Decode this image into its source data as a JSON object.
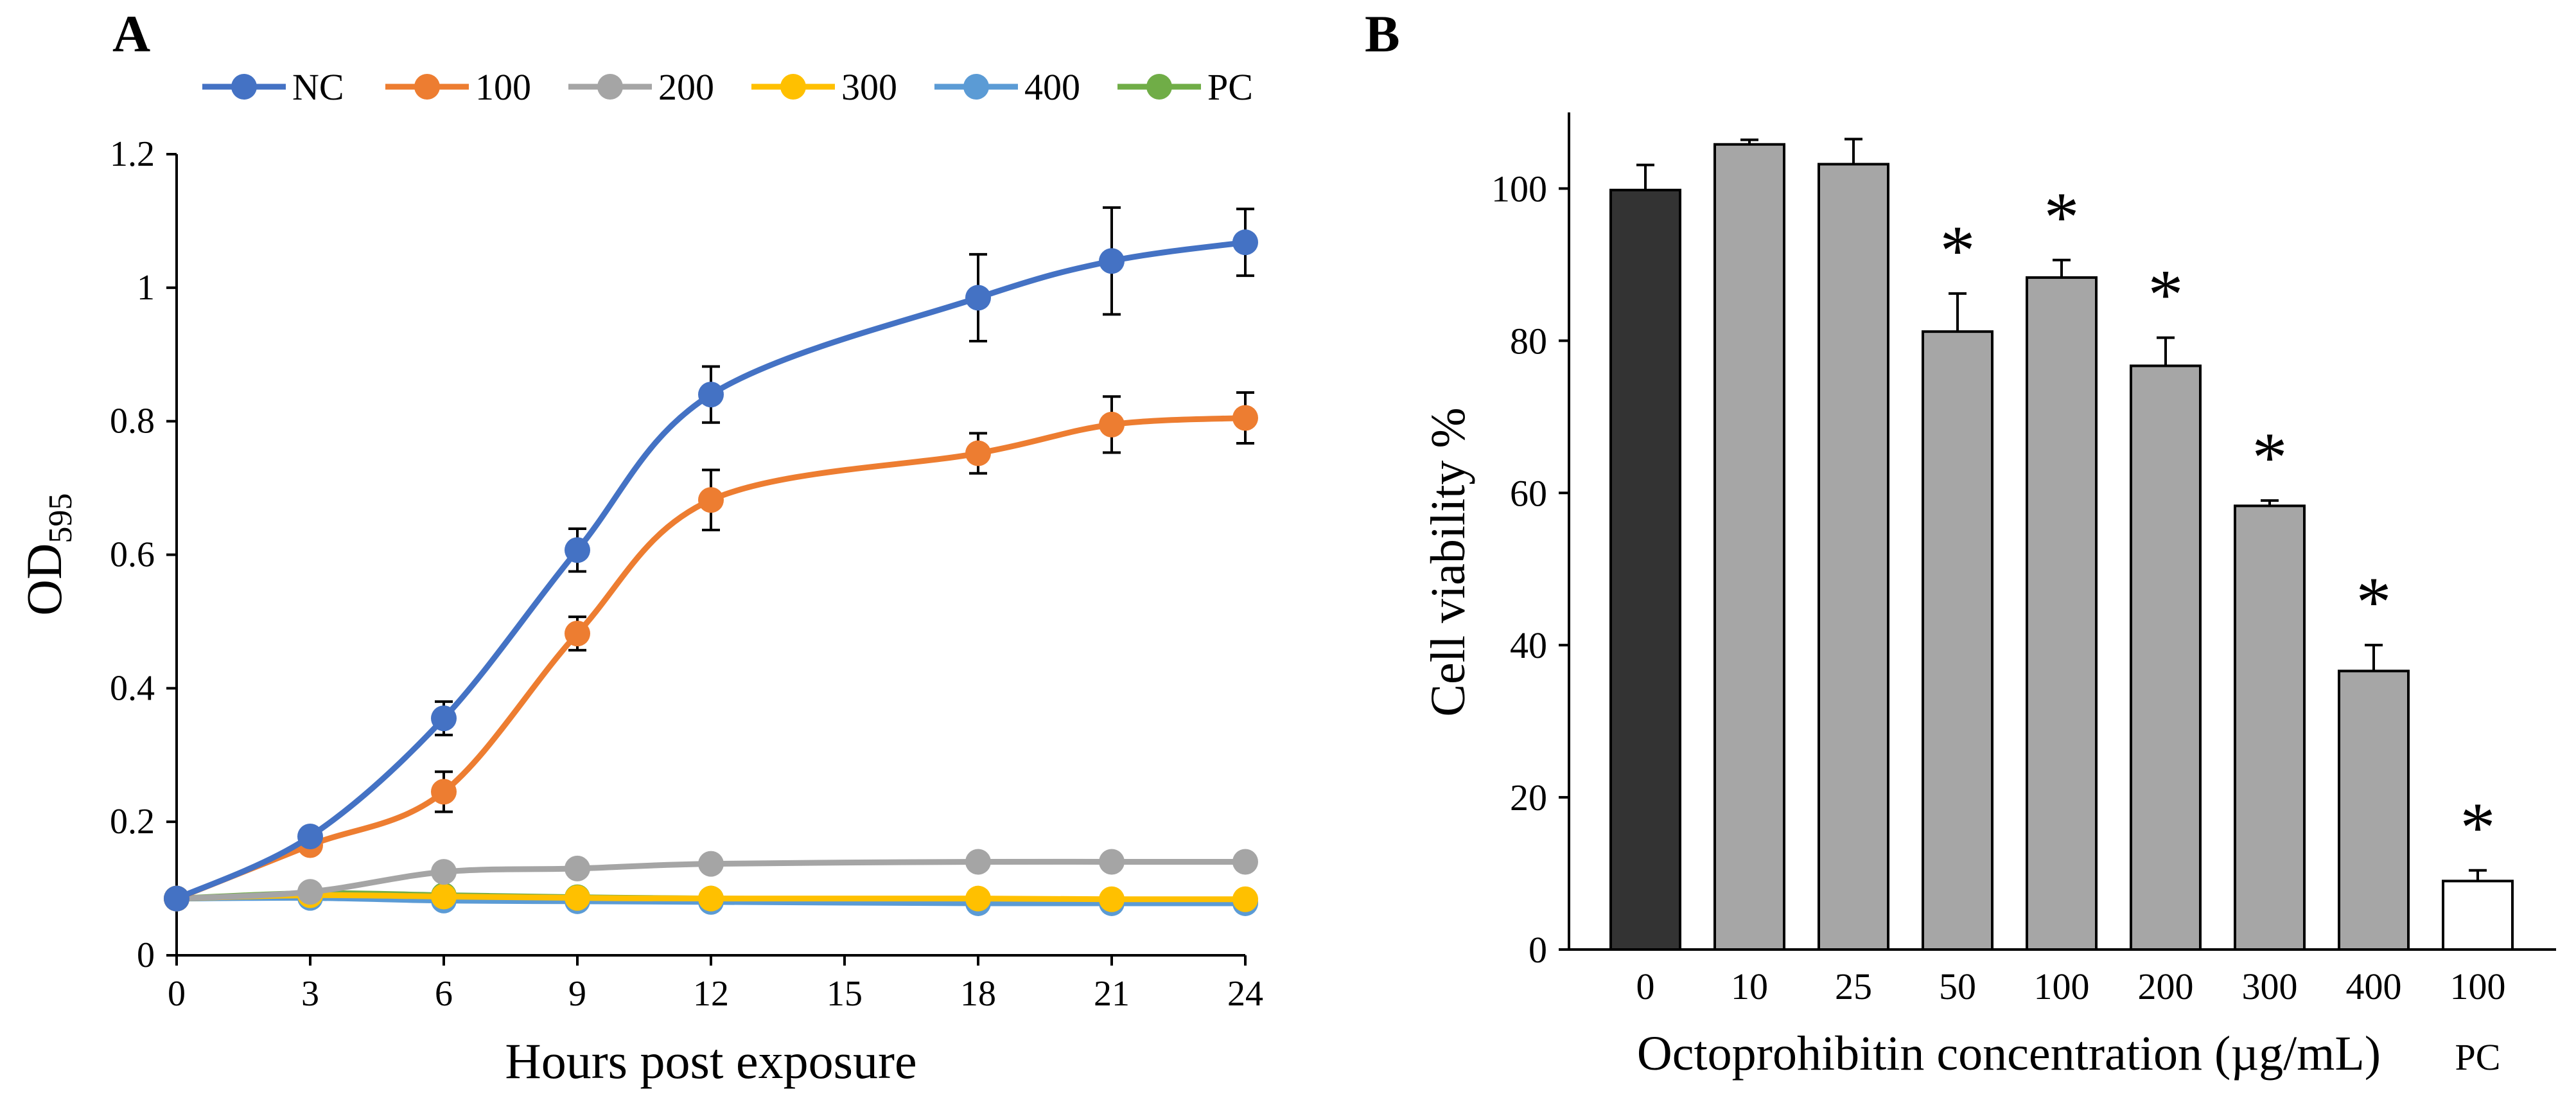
{
  "chart_data": [
    {
      "panel": "A",
      "type": "line",
      "xlabel": "Hours post exposure",
      "ylabel": "OD",
      "ylabel_sub": "595",
      "xlim": [
        0,
        24
      ],
      "ylim": [
        0,
        1.2
      ],
      "xticks": [
        "0",
        "3",
        "6",
        "9",
        "12",
        "15",
        "18",
        "21",
        "24"
      ],
      "yticks": [
        "0",
        "0.2",
        "0.4",
        "0.6",
        "0.8",
        "1",
        "1.2"
      ],
      "x": [
        0,
        3,
        6,
        9,
        12,
        18,
        21,
        24
      ],
      "legend_position": "top",
      "series": [
        {
          "name": "NC",
          "color": "#4472C4",
          "values": [
            0.085,
            0.178,
            0.355,
            0.607,
            0.84,
            0.985,
            1.04,
            1.068
          ],
          "errors": [
            0,
            0.008,
            0.025,
            0.032,
            0.042,
            0.065,
            0.08,
            0.05
          ]
        },
        {
          "name": "100",
          "color": "#ED7D31",
          "values": [
            0.085,
            0.165,
            0.245,
            0.482,
            0.682,
            0.752,
            0.795,
            0.805
          ],
          "errors": [
            0,
            0.008,
            0.03,
            0.025,
            0.045,
            0.03,
            0.042,
            0.038
          ]
        },
        {
          "name": "200",
          "color": "#A5A5A5",
          "values": [
            0.085,
            0.095,
            0.125,
            0.13,
            0.137,
            0.14,
            0.14,
            0.14
          ],
          "errors": [
            0,
            0.004,
            0.005,
            0.005,
            0.005,
            0.005,
            0.005,
            0.005
          ]
        },
        {
          "name": "300",
          "color": "#FFC000",
          "values": [
            0.085,
            0.09,
            0.088,
            0.086,
            0.085,
            0.085,
            0.084,
            0.084
          ],
          "errors": [
            0,
            0,
            0,
            0,
            0,
            0,
            0,
            0
          ]
        },
        {
          "name": "400",
          "color": "#5B9BD5",
          "values": [
            0.085,
            0.086,
            0.082,
            0.081,
            0.08,
            0.078,
            0.078,
            0.078
          ],
          "errors": [
            0,
            0,
            0,
            0,
            0,
            0,
            0,
            0
          ]
        },
        {
          "name": "PC",
          "color": "#70AD47",
          "values": [
            0.085,
            0.093,
            0.09,
            0.087,
            0.085,
            0.083,
            0.081,
            0.079
          ],
          "errors": [
            0,
            0,
            0,
            0,
            0,
            0,
            0,
            0
          ]
        }
      ]
    },
    {
      "panel": "B",
      "type": "bar",
      "xlabel": "Octoprohibitin concentration (µg/mL)",
      "ylabel": "Cell viability %",
      "ylim": [
        0,
        110
      ],
      "yticks": [
        "0",
        "20",
        "40",
        "60",
        "80",
        "100"
      ],
      "categories": [
        "0",
        "10",
        "25",
        "50",
        "100",
        "200",
        "300",
        "400",
        "100"
      ],
      "category_sublabels": [
        "",
        "",
        "",
        "",
        "",
        "",
        "",
        "",
        "PC"
      ],
      "values": [
        99.8,
        105.8,
        103.2,
        81.2,
        88.3,
        76.7,
        58.3,
        36.6,
        9.0
      ],
      "errors": [
        3.3,
        0.6,
        3.3,
        5.0,
        2.3,
        3.7,
        0.7,
        3.4,
        1.4
      ],
      "colors": [
        "#333333",
        "#A6A6A6",
        "#A6A6A6",
        "#A6A6A6",
        "#A6A6A6",
        "#A6A6A6",
        "#A6A6A6",
        "#A6A6A6",
        "#FFFFFF"
      ],
      "significance": [
        "",
        "",
        "",
        "*",
        "*",
        "*",
        "*",
        "*",
        "*"
      ]
    }
  ]
}
